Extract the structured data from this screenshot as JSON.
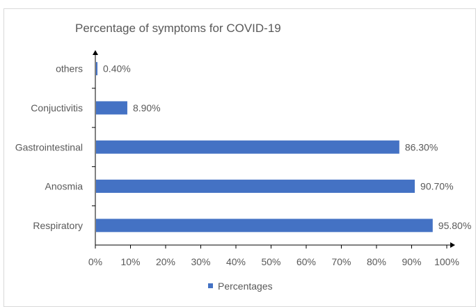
{
  "chart_data": {
    "type": "bar",
    "orientation": "horizontal",
    "title": "Percentage of symptoms for COVID-19",
    "categories": [
      "Respiratory",
      "Anosmia",
      "Gastrointestinal",
      "Conjuctivitis",
      "others"
    ],
    "series": [
      {
        "name": "Percentages",
        "values": [
          95.8,
          90.7,
          86.3,
          8.9,
          0.4
        ],
        "labels": [
          "95.80%",
          "90.70%",
          "86.30%",
          "8.90%",
          "0.40%"
        ],
        "color": "#4472C4"
      }
    ],
    "xlim": [
      0,
      100
    ],
    "xticks": [
      "0%",
      "10%",
      "20%",
      "30%",
      "40%",
      "50%",
      "60%",
      "70%",
      "80%",
      "90%",
      "100%"
    ],
    "grid": false,
    "legend": "bottom"
  }
}
